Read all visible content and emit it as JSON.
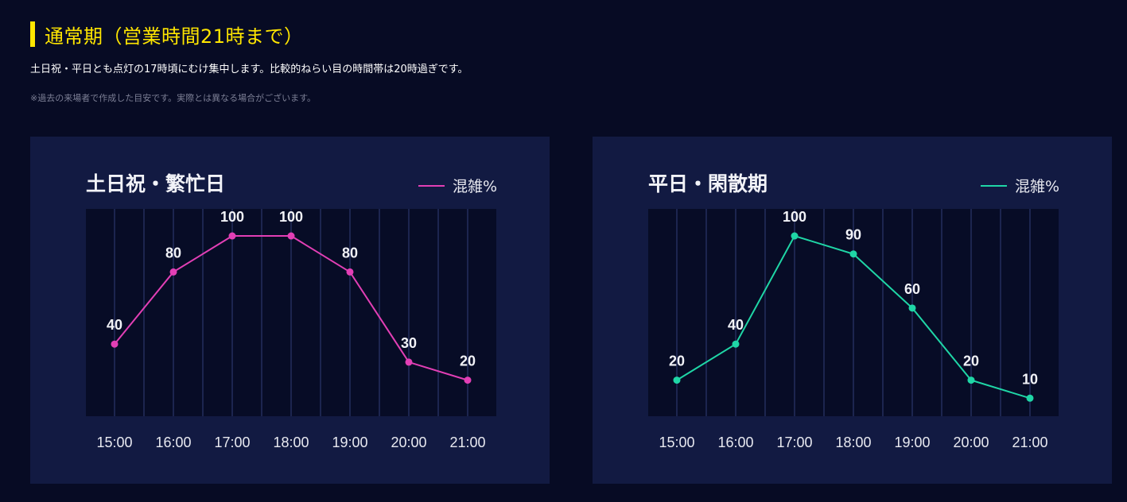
{
  "header": {
    "title": "通常期（営業時間21時まで）",
    "description": "土日祝・平日とも点灯の17時頃にむけ集中します。比較的ねらい目の時間帯は20時過ぎです。",
    "note": "※過去の来場者で作成した目安です。実際とは異なる場合がございます。"
  },
  "colors": {
    "accent": "#ffe600",
    "busy": "#e23fb5",
    "quiet": "#1fd6a6"
  },
  "chart_data": [
    {
      "type": "line",
      "title": "土日祝・繁忙日",
      "categories": [
        "15:00",
        "16:00",
        "17:00",
        "18:00",
        "19:00",
        "20:00",
        "21:00"
      ],
      "series": [
        {
          "name": "混雑%",
          "values": [
            40,
            80,
            100,
            100,
            80,
            30,
            20
          ],
          "color": "#e23fb5"
        }
      ],
      "ylim": [
        0,
        115
      ],
      "grid": "vertical",
      "legend": "top-right"
    },
    {
      "type": "line",
      "title": "平日・閑散期",
      "categories": [
        "15:00",
        "16:00",
        "17:00",
        "18:00",
        "19:00",
        "20:00",
        "21:00"
      ],
      "series": [
        {
          "name": "混雑%",
          "values": [
            20,
            40,
            100,
            90,
            60,
            20,
            10
          ],
          "color": "#1fd6a6"
        }
      ],
      "ylim": [
        0,
        115
      ],
      "grid": "vertical",
      "legend": "top-right"
    }
  ]
}
